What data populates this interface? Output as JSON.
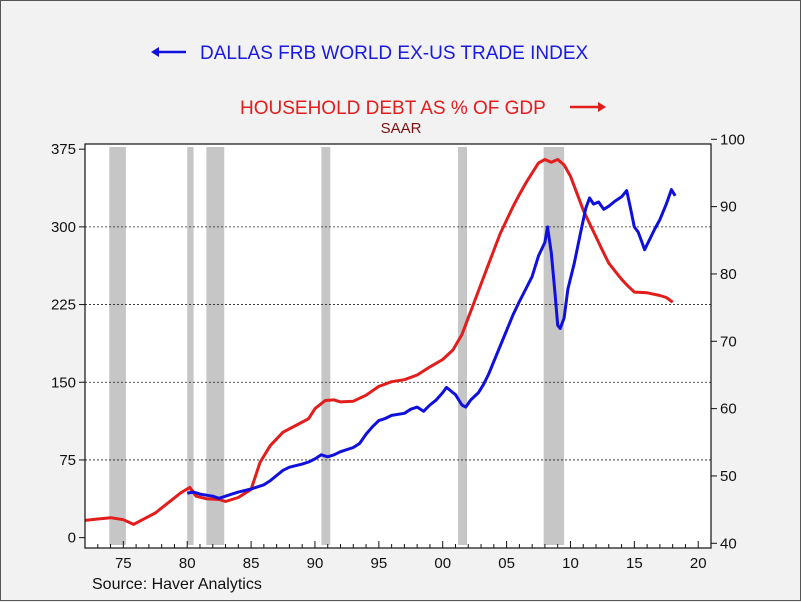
{
  "chart_data": {
    "type": "line",
    "title": "",
    "source": "Source: Haver Analytics",
    "xlim": [
      1972,
      2021
    ],
    "x_tick_labels": [
      "75",
      "80",
      "85",
      "90",
      "95",
      "00",
      "05",
      "10",
      "15",
      "20"
    ],
    "x_tick_values": [
      1975,
      1980,
      1985,
      1990,
      1995,
      2000,
      2005,
      2010,
      2015,
      2020
    ],
    "left_axis": {
      "ylim": [
        -10,
        380
      ],
      "ticks": [
        0,
        75,
        150,
        225,
        300,
        375
      ],
      "tick_labels": [
        "0",
        "75",
        "150",
        "225",
        "300",
        "375"
      ]
    },
    "right_axis": {
      "ylim": [
        39.3,
        99.3
      ],
      "ticks": [
        40,
        50,
        60,
        70,
        80,
        90,
        100
      ],
      "tick_labels": [
        "40",
        "50",
        "60",
        "70",
        "80",
        "90",
        "100"
      ]
    },
    "gridlines_left": [
      75,
      150,
      225,
      300
    ],
    "recessions": [
      [
        1973.9,
        1975.2
      ],
      [
        1980.0,
        1980.5
      ],
      [
        1981.5,
        1982.9
      ],
      [
        1990.5,
        1991.2
      ],
      [
        2001.2,
        2001.9
      ],
      [
        2007.9,
        2009.5
      ]
    ],
    "series": [
      {
        "name": "DALLAS FRB WORLD EX-US TRADE INDEX",
        "axis": "left",
        "legend_arrow": "left",
        "color": "#1010dd",
        "points": [
          [
            1980.0,
            43
          ],
          [
            1980.5,
            44
          ],
          [
            1981.0,
            42
          ],
          [
            1981.5,
            41
          ],
          [
            1982.0,
            40
          ],
          [
            1982.5,
            38
          ],
          [
            1983.0,
            40
          ],
          [
            1983.5,
            42
          ],
          [
            1984.0,
            44
          ],
          [
            1985.0,
            47
          ],
          [
            1986.0,
            51
          ],
          [
            1986.5,
            55
          ],
          [
            1987.0,
            60
          ],
          [
            1987.5,
            65
          ],
          [
            1988.0,
            68
          ],
          [
            1989.0,
            71
          ],
          [
            1989.5,
            73
          ],
          [
            1990.0,
            76
          ],
          [
            1990.5,
            80
          ],
          [
            1991.0,
            78
          ],
          [
            1991.5,
            80
          ],
          [
            1992.0,
            83
          ],
          [
            1993.0,
            87
          ],
          [
            1993.5,
            91
          ],
          [
            1994.0,
            100
          ],
          [
            1994.5,
            107
          ],
          [
            1995.0,
            113
          ],
          [
            1995.5,
            115
          ],
          [
            1996.0,
            118
          ],
          [
            1997.0,
            120
          ],
          [
            1997.5,
            124
          ],
          [
            1998.0,
            126
          ],
          [
            1998.5,
            122
          ],
          [
            1999.0,
            128
          ],
          [
            1999.5,
            133
          ],
          [
            2000.0,
            140
          ],
          [
            2000.3,
            145
          ],
          [
            2000.5,
            143
          ],
          [
            2001.0,
            138
          ],
          [
            2001.5,
            128
          ],
          [
            2001.8,
            126
          ],
          [
            2002.2,
            133
          ],
          [
            2002.8,
            140
          ],
          [
            2003.2,
            148
          ],
          [
            2003.6,
            158
          ],
          [
            2004.0,
            170
          ],
          [
            2004.5,
            185
          ],
          [
            2005.0,
            200
          ],
          [
            2005.5,
            215
          ],
          [
            2006.0,
            228
          ],
          [
            2006.5,
            240
          ],
          [
            2007.0,
            252
          ],
          [
            2007.5,
            272
          ],
          [
            2008.0,
            285
          ],
          [
            2008.2,
            300
          ],
          [
            2008.5,
            275
          ],
          [
            2008.8,
            235
          ],
          [
            2009.0,
            205
          ],
          [
            2009.2,
            202
          ],
          [
            2009.5,
            212
          ],
          [
            2009.8,
            240
          ],
          [
            2010.3,
            265
          ],
          [
            2010.8,
            295
          ],
          [
            2011.2,
            318
          ],
          [
            2011.5,
            328
          ],
          [
            2011.8,
            322
          ],
          [
            2012.2,
            324
          ],
          [
            2012.6,
            317
          ],
          [
            2013.0,
            320
          ],
          [
            2013.5,
            325
          ],
          [
            2014.0,
            329
          ],
          [
            2014.4,
            335
          ],
          [
            2014.7,
            318
          ],
          [
            2015.0,
            300
          ],
          [
            2015.3,
            295
          ],
          [
            2015.6,
            285
          ],
          [
            2015.8,
            278
          ],
          [
            2016.2,
            288
          ],
          [
            2016.6,
            298
          ],
          [
            2017.0,
            307
          ],
          [
            2017.5,
            322
          ],
          [
            2017.9,
            336
          ],
          [
            2018.2,
            330
          ]
        ]
      },
      {
        "name": "HOUSEHOLD DEBT AS % OF GDP",
        "subtitle": "SAAR",
        "axis": "right",
        "legend_arrow": "right",
        "color": "#e31c1c",
        "points": [
          [
            1972.0,
            43.4
          ],
          [
            1973.0,
            43.6
          ],
          [
            1974.0,
            43.8
          ],
          [
            1975.0,
            43.5
          ],
          [
            1975.8,
            42.8
          ],
          [
            1976.5,
            43.5
          ],
          [
            1977.5,
            44.5
          ],
          [
            1978.5,
            46.0
          ],
          [
            1979.5,
            47.5
          ],
          [
            1980.2,
            48.3
          ],
          [
            1980.7,
            47.0
          ],
          [
            1981.5,
            46.6
          ],
          [
            1982.5,
            46.5
          ],
          [
            1983.0,
            46.2
          ],
          [
            1984.0,
            46.8
          ],
          [
            1985.0,
            48.0
          ],
          [
            1985.7,
            52.0
          ],
          [
            1986.5,
            54.5
          ],
          [
            1987.5,
            56.5
          ],
          [
            1988.5,
            57.5
          ],
          [
            1989.5,
            58.5
          ],
          [
            1990.0,
            60.0
          ],
          [
            1990.8,
            61.2
          ],
          [
            1991.5,
            61.3
          ],
          [
            1992.0,
            61.0
          ],
          [
            1993.0,
            61.1
          ],
          [
            1994.0,
            62.0
          ],
          [
            1995.0,
            63.3
          ],
          [
            1996.0,
            64.0
          ],
          [
            1997.0,
            64.3
          ],
          [
            1998.0,
            65.0
          ],
          [
            1999.0,
            66.2
          ],
          [
            2000.0,
            67.3
          ],
          [
            2000.8,
            68.7
          ],
          [
            2001.5,
            71.0
          ],
          [
            2002.0,
            73.5
          ],
          [
            2002.5,
            76.0
          ],
          [
            2003.0,
            78.5
          ],
          [
            2003.5,
            81.0
          ],
          [
            2004.0,
            83.5
          ],
          [
            2004.5,
            86.0
          ],
          [
            2005.0,
            88.0
          ],
          [
            2005.5,
            90.0
          ],
          [
            2006.0,
            91.8
          ],
          [
            2006.5,
            93.5
          ],
          [
            2007.0,
            95.0
          ],
          [
            2007.5,
            96.5
          ],
          [
            2008.0,
            97.0
          ],
          [
            2008.5,
            96.6
          ],
          [
            2009.0,
            97.0
          ],
          [
            2009.5,
            96.2
          ],
          [
            2010.0,
            94.5
          ],
          [
            2010.5,
            92.0
          ],
          [
            2011.0,
            89.5
          ],
          [
            2011.5,
            87.5
          ],
          [
            2012.0,
            85.5
          ],
          [
            2012.5,
            83.5
          ],
          [
            2013.0,
            81.6
          ],
          [
            2013.5,
            80.4
          ],
          [
            2014.0,
            79.2
          ],
          [
            2014.5,
            78.2
          ],
          [
            2015.0,
            77.3
          ],
          [
            2016.0,
            77.2
          ],
          [
            2017.0,
            76.8
          ],
          [
            2017.5,
            76.5
          ],
          [
            2018.0,
            75.8
          ]
        ]
      }
    ]
  }
}
